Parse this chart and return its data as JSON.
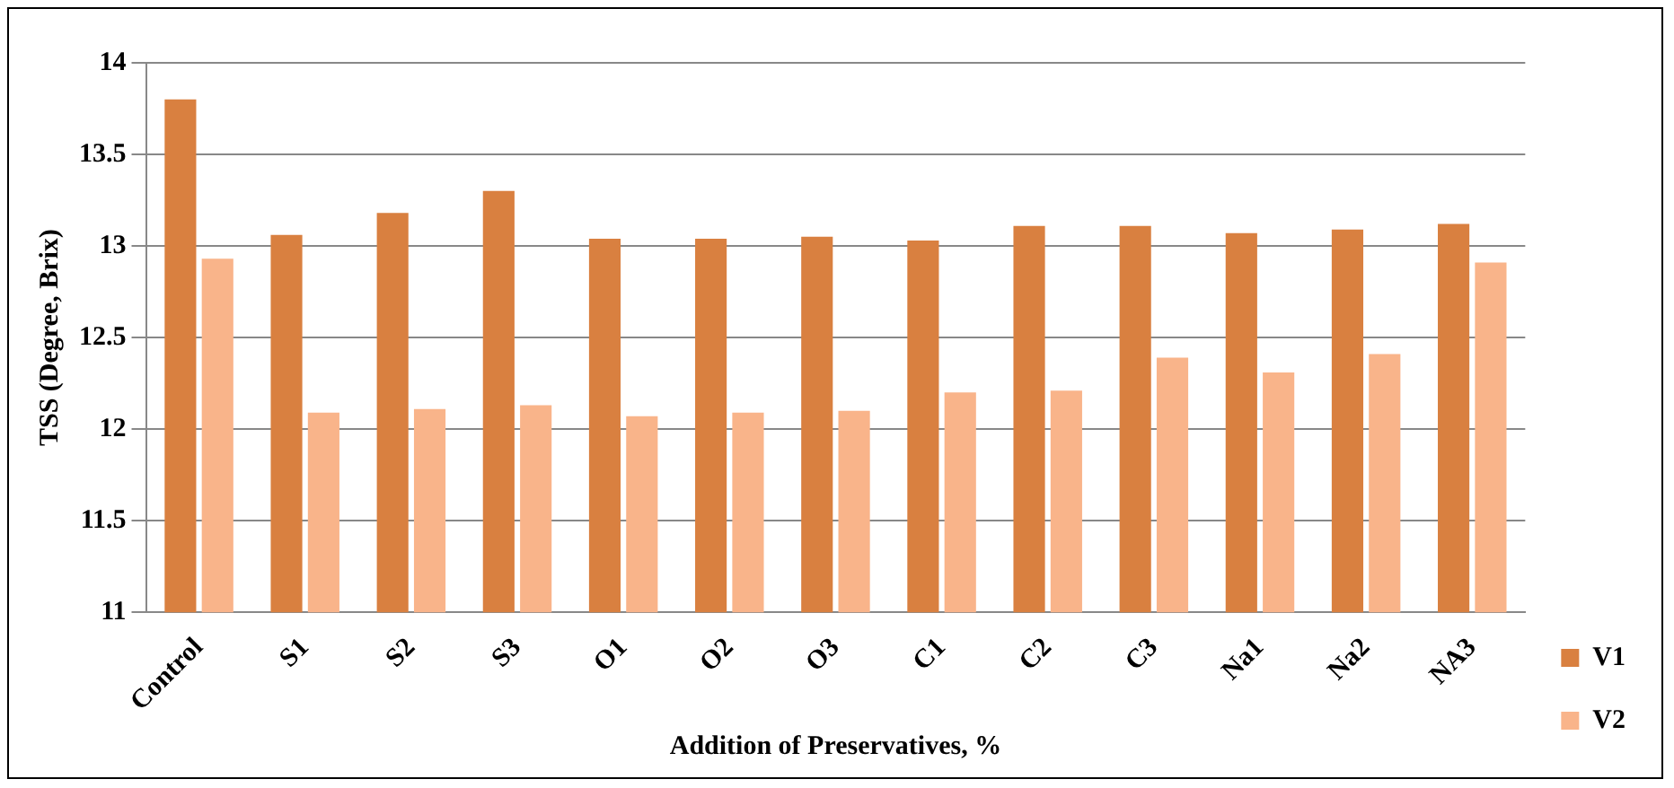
{
  "chart_data": {
    "type": "bar",
    "xlabel": "Addition of Preservatives, %",
    "ylabel": "TSS (Degree, Brix)",
    "categories": [
      "Control",
      "S1",
      "S2",
      "S3",
      "O1",
      "O2",
      "O3",
      "C1",
      "C2",
      "C3",
      "Na1",
      "Na2",
      "NA3"
    ],
    "series": [
      {
        "name": "V1",
        "color": "#d98040",
        "values": [
          13.8,
          13.06,
          13.18,
          13.3,
          13.04,
          13.04,
          13.05,
          13.03,
          13.11,
          13.11,
          13.07,
          13.09,
          13.12
        ]
      },
      {
        "name": "V2",
        "color": "#f9b48a",
        "values": [
          12.93,
          12.09,
          12.11,
          12.13,
          12.07,
          12.09,
          12.1,
          12.2,
          12.21,
          12.39,
          12.31,
          12.41,
          12.91
        ]
      }
    ],
    "ylim": [
      11,
      14
    ],
    "yticks": [
      11,
      11.5,
      12,
      12.5,
      13,
      13.5,
      14
    ],
    "grid": "y",
    "legend": "right"
  }
}
